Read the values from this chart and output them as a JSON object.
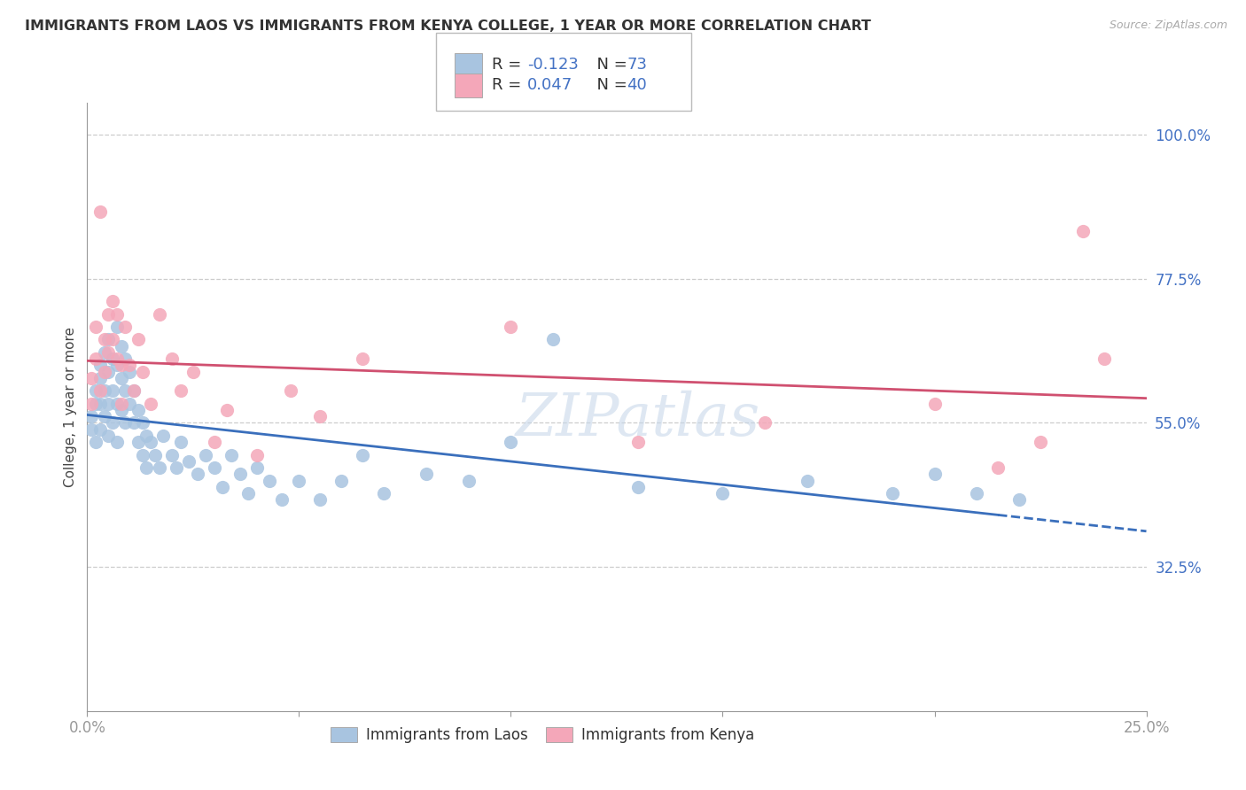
{
  "title": "IMMIGRANTS FROM LAOS VS IMMIGRANTS FROM KENYA COLLEGE, 1 YEAR OR MORE CORRELATION CHART",
  "source": "Source: ZipAtlas.com",
  "ylabel": "College, 1 year or more",
  "xlim": [
    0.0,
    0.25
  ],
  "ylim": [
    0.1,
    1.05
  ],
  "yticks": [
    0.325,
    0.55,
    0.775,
    1.0
  ],
  "yticklabels": [
    "32.5%",
    "55.0%",
    "77.5%",
    "100.0%"
  ],
  "laos_color": "#a8c4e0",
  "kenya_color": "#f4a7b9",
  "laos_R": -0.123,
  "laos_N": 73,
  "kenya_R": 0.047,
  "kenya_N": 40,
  "laos_line_color": "#3a6fbc",
  "kenya_line_color": "#d05070",
  "R_color": "#3a6fbc",
  "N_color": "#3a6fbc",
  "background_color": "#ffffff",
  "watermark": "ZIPatlas",
  "legend_label_laos": "Immigrants from Laos",
  "legend_label_kenya": "Immigrants from Kenya",
  "laos_x": [
    0.001,
    0.001,
    0.002,
    0.002,
    0.002,
    0.003,
    0.003,
    0.003,
    0.003,
    0.004,
    0.004,
    0.004,
    0.005,
    0.005,
    0.005,
    0.005,
    0.006,
    0.006,
    0.006,
    0.007,
    0.007,
    0.007,
    0.007,
    0.008,
    0.008,
    0.008,
    0.009,
    0.009,
    0.009,
    0.01,
    0.01,
    0.011,
    0.011,
    0.012,
    0.012,
    0.013,
    0.013,
    0.014,
    0.014,
    0.015,
    0.016,
    0.017,
    0.018,
    0.02,
    0.021,
    0.022,
    0.024,
    0.026,
    0.028,
    0.03,
    0.032,
    0.034,
    0.036,
    0.038,
    0.04,
    0.043,
    0.046,
    0.05,
    0.055,
    0.06,
    0.065,
    0.07,
    0.08,
    0.09,
    0.1,
    0.11,
    0.13,
    0.15,
    0.17,
    0.19,
    0.2,
    0.21,
    0.22
  ],
  "laos_y": [
    0.54,
    0.56,
    0.52,
    0.58,
    0.6,
    0.64,
    0.62,
    0.58,
    0.54,
    0.66,
    0.6,
    0.56,
    0.68,
    0.63,
    0.58,
    0.53,
    0.65,
    0.6,
    0.55,
    0.7,
    0.64,
    0.58,
    0.52,
    0.67,
    0.62,
    0.57,
    0.65,
    0.6,
    0.55,
    0.63,
    0.58,
    0.6,
    0.55,
    0.57,
    0.52,
    0.55,
    0.5,
    0.53,
    0.48,
    0.52,
    0.5,
    0.48,
    0.53,
    0.5,
    0.48,
    0.52,
    0.49,
    0.47,
    0.5,
    0.48,
    0.45,
    0.5,
    0.47,
    0.44,
    0.48,
    0.46,
    0.43,
    0.46,
    0.43,
    0.46,
    0.5,
    0.44,
    0.47,
    0.46,
    0.52,
    0.68,
    0.45,
    0.44,
    0.46,
    0.44,
    0.47,
    0.44,
    0.43
  ],
  "kenya_x": [
    0.001,
    0.001,
    0.002,
    0.002,
    0.003,
    0.003,
    0.004,
    0.004,
    0.005,
    0.005,
    0.006,
    0.006,
    0.007,
    0.007,
    0.008,
    0.008,
    0.009,
    0.01,
    0.011,
    0.012,
    0.013,
    0.015,
    0.017,
    0.02,
    0.022,
    0.025,
    0.03,
    0.033,
    0.04,
    0.048,
    0.055,
    0.065,
    0.1,
    0.13,
    0.16,
    0.2,
    0.215,
    0.225,
    0.235,
    0.24
  ],
  "kenya_y": [
    0.62,
    0.58,
    0.7,
    0.65,
    0.88,
    0.6,
    0.68,
    0.63,
    0.72,
    0.66,
    0.74,
    0.68,
    0.72,
    0.65,
    0.64,
    0.58,
    0.7,
    0.64,
    0.6,
    0.68,
    0.63,
    0.58,
    0.72,
    0.65,
    0.6,
    0.63,
    0.52,
    0.57,
    0.5,
    0.6,
    0.56,
    0.65,
    0.7,
    0.52,
    0.55,
    0.58,
    0.48,
    0.52,
    0.85,
    0.65
  ]
}
